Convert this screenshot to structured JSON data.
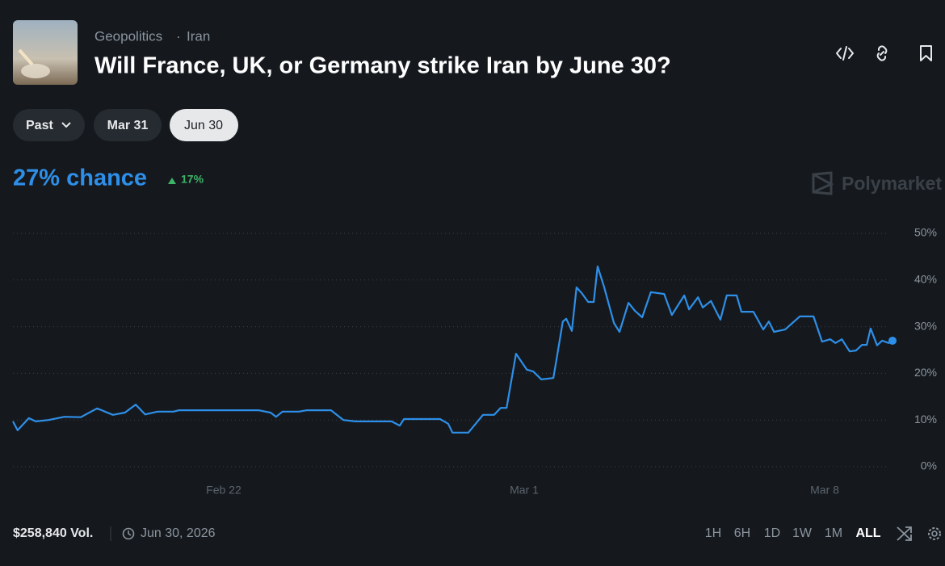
{
  "header": {
    "category": "Geopolitics",
    "tag": "Iran",
    "title": "Will France, UK, or Germany strike Iran by June 30?"
  },
  "date_tabs": [
    "Past",
    "Mar 31",
    "Jun 30"
  ],
  "chance": "27% chance",
  "change": "17%",
  "watermark": "Polymarket",
  "chart_data": {
    "type": "line",
    "color": "#2e8fe8",
    "grid": true,
    "x": [
      48.09,
      48.2,
      48.46,
      48.62,
      48.92,
      49.29,
      49.67,
      50.05,
      50.42,
      50.7,
      50.95,
      51.17,
      51.46,
      51.83,
      51.96,
      53.81,
      54.09,
      54.22,
      54.37,
      54.75,
      54.94,
      55.5,
      55.79,
      56.07,
      56.91,
      57.1,
      57.2,
      58.04,
      58.23,
      58.33,
      58.7,
      59.04,
      59.3,
      59.45,
      59.59,
      59.81,
      60.06,
      60.21,
      60.4,
      60.68,
      60.77,
      60.9,
      60.98,
      61.11,
      61.22,
      61.34,
      61.49,
      61.62,
      61.71,
      61.86,
      62.09,
      62.22,
      62.43,
      62.58,
      62.75,
      62.95,
      63.26,
      63.44,
      63.73,
      63.84,
      64.05,
      64.16,
      64.35,
      64.57,
      64.72,
      64.95,
      65.06,
      65.34,
      65.57,
      65.7,
      65.82,
      66.08,
      66.42,
      66.74,
      66.94,
      67.13,
      67.25,
      67.4,
      67.58,
      67.73,
      67.87,
      67.98,
      68.07,
      68.22,
      68.34,
      68.49,
      68.58
    ],
    "values": [
      9.7,
      7.8,
      10.4,
      9.7,
      10,
      10.7,
      10.6,
      12.5,
      11.1,
      11.6,
      13.3,
      11.2,
      11.8,
      11.8,
      12.1,
      12.1,
      11.6,
      10.7,
      11.8,
      11.8,
      12.1,
      12.1,
      10,
      9.7,
      9.7,
      8.8,
      10.2,
      10.2,
      9.2,
      7.3,
      7.3,
      11.1,
      11.1,
      12.6,
      12.6,
      24.2,
      20.8,
      20.4,
      18.7,
      19,
      23.9,
      31.1,
      31.7,
      29.1,
      38.4,
      37.2,
      35.3,
      35.3,
      42.9,
      38.6,
      30.8,
      28.9,
      35.1,
      33.4,
      32,
      37.4,
      37,
      32.5,
      36.7,
      33.7,
      36.3,
      34.1,
      35.5,
      31.5,
      36.7,
      36.7,
      33.2,
      33.2,
      29.4,
      31.1,
      28.9,
      29.4,
      32.2,
      32.2,
      26.8,
      27.3,
      26.5,
      27.3,
      24.7,
      24.9,
      26.1,
      26.1,
      29.6,
      26,
      27,
      26.5,
      27
    ],
    "xlim": [
      48.09,
      68.58
    ],
    "xticks": [
      {
        "value": 53,
        "label": "Feb 22"
      },
      {
        "value": 60,
        "label": "Mar 1"
      },
      {
        "value": 67,
        "label": "Mar 8"
      }
    ],
    "ylim": [
      0,
      50
    ],
    "yticks": [
      {
        "value": 0,
        "label": "0%"
      },
      {
        "value": 10,
        "label": "10%"
      },
      {
        "value": 20,
        "label": "20%"
      },
      {
        "value": 30,
        "label": "30%"
      },
      {
        "value": 40,
        "label": "40%"
      },
      {
        "value": 50,
        "label": "50%"
      }
    ]
  },
  "footer": {
    "volume": "$258,840 Vol.",
    "end_date": "Jun 30, 2026",
    "ranges": [
      "1H",
      "6H",
      "1D",
      "1W",
      "1M",
      "ALL"
    ]
  }
}
